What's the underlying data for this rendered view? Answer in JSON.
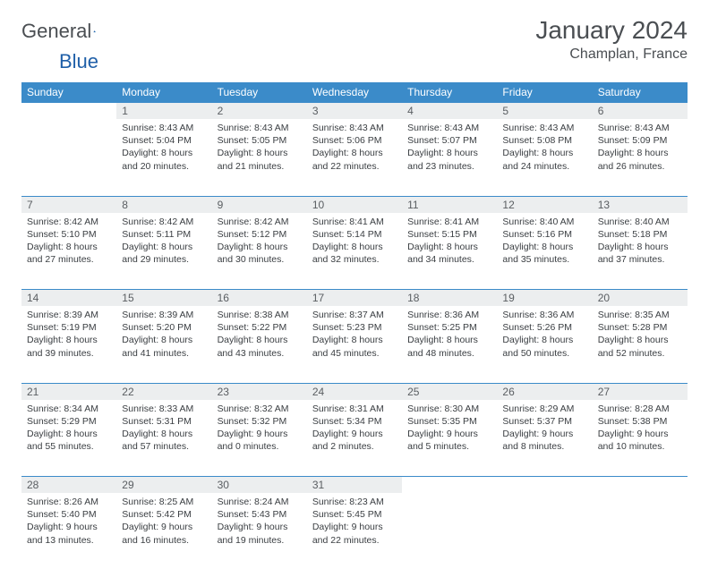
{
  "brand": {
    "part1": "General",
    "part2": "Blue"
  },
  "title": "January 2024",
  "location": "Champlan, France",
  "colors": {
    "header_bg": "#3b8bc9",
    "header_text": "#ffffff",
    "daynum_bg": "#eceeef",
    "row_border": "#3b8bc9",
    "body_text": "#3a3e42",
    "title_text": "#4a4e52"
  },
  "weekdays": [
    "Sunday",
    "Monday",
    "Tuesday",
    "Wednesday",
    "Thursday",
    "Friday",
    "Saturday"
  ],
  "weeks": [
    {
      "days": [
        {
          "num": "",
          "lines": [
            "",
            "",
            "",
            ""
          ]
        },
        {
          "num": "1",
          "lines": [
            "Sunrise: 8:43 AM",
            "Sunset: 5:04 PM",
            "Daylight: 8 hours",
            "and 20 minutes."
          ]
        },
        {
          "num": "2",
          "lines": [
            "Sunrise: 8:43 AM",
            "Sunset: 5:05 PM",
            "Daylight: 8 hours",
            "and 21 minutes."
          ]
        },
        {
          "num": "3",
          "lines": [
            "Sunrise: 8:43 AM",
            "Sunset: 5:06 PM",
            "Daylight: 8 hours",
            "and 22 minutes."
          ]
        },
        {
          "num": "4",
          "lines": [
            "Sunrise: 8:43 AM",
            "Sunset: 5:07 PM",
            "Daylight: 8 hours",
            "and 23 minutes."
          ]
        },
        {
          "num": "5",
          "lines": [
            "Sunrise: 8:43 AM",
            "Sunset: 5:08 PM",
            "Daylight: 8 hours",
            "and 24 minutes."
          ]
        },
        {
          "num": "6",
          "lines": [
            "Sunrise: 8:43 AM",
            "Sunset: 5:09 PM",
            "Daylight: 8 hours",
            "and 26 minutes."
          ]
        }
      ]
    },
    {
      "days": [
        {
          "num": "7",
          "lines": [
            "Sunrise: 8:42 AM",
            "Sunset: 5:10 PM",
            "Daylight: 8 hours",
            "and 27 minutes."
          ]
        },
        {
          "num": "8",
          "lines": [
            "Sunrise: 8:42 AM",
            "Sunset: 5:11 PM",
            "Daylight: 8 hours",
            "and 29 minutes."
          ]
        },
        {
          "num": "9",
          "lines": [
            "Sunrise: 8:42 AM",
            "Sunset: 5:12 PM",
            "Daylight: 8 hours",
            "and 30 minutes."
          ]
        },
        {
          "num": "10",
          "lines": [
            "Sunrise: 8:41 AM",
            "Sunset: 5:14 PM",
            "Daylight: 8 hours",
            "and 32 minutes."
          ]
        },
        {
          "num": "11",
          "lines": [
            "Sunrise: 8:41 AM",
            "Sunset: 5:15 PM",
            "Daylight: 8 hours",
            "and 34 minutes."
          ]
        },
        {
          "num": "12",
          "lines": [
            "Sunrise: 8:40 AM",
            "Sunset: 5:16 PM",
            "Daylight: 8 hours",
            "and 35 minutes."
          ]
        },
        {
          "num": "13",
          "lines": [
            "Sunrise: 8:40 AM",
            "Sunset: 5:18 PM",
            "Daylight: 8 hours",
            "and 37 minutes."
          ]
        }
      ]
    },
    {
      "days": [
        {
          "num": "14",
          "lines": [
            "Sunrise: 8:39 AM",
            "Sunset: 5:19 PM",
            "Daylight: 8 hours",
            "and 39 minutes."
          ]
        },
        {
          "num": "15",
          "lines": [
            "Sunrise: 8:39 AM",
            "Sunset: 5:20 PM",
            "Daylight: 8 hours",
            "and 41 minutes."
          ]
        },
        {
          "num": "16",
          "lines": [
            "Sunrise: 8:38 AM",
            "Sunset: 5:22 PM",
            "Daylight: 8 hours",
            "and 43 minutes."
          ]
        },
        {
          "num": "17",
          "lines": [
            "Sunrise: 8:37 AM",
            "Sunset: 5:23 PM",
            "Daylight: 8 hours",
            "and 45 minutes."
          ]
        },
        {
          "num": "18",
          "lines": [
            "Sunrise: 8:36 AM",
            "Sunset: 5:25 PM",
            "Daylight: 8 hours",
            "and 48 minutes."
          ]
        },
        {
          "num": "19",
          "lines": [
            "Sunrise: 8:36 AM",
            "Sunset: 5:26 PM",
            "Daylight: 8 hours",
            "and 50 minutes."
          ]
        },
        {
          "num": "20",
          "lines": [
            "Sunrise: 8:35 AM",
            "Sunset: 5:28 PM",
            "Daylight: 8 hours",
            "and 52 minutes."
          ]
        }
      ]
    },
    {
      "days": [
        {
          "num": "21",
          "lines": [
            "Sunrise: 8:34 AM",
            "Sunset: 5:29 PM",
            "Daylight: 8 hours",
            "and 55 minutes."
          ]
        },
        {
          "num": "22",
          "lines": [
            "Sunrise: 8:33 AM",
            "Sunset: 5:31 PM",
            "Daylight: 8 hours",
            "and 57 minutes."
          ]
        },
        {
          "num": "23",
          "lines": [
            "Sunrise: 8:32 AM",
            "Sunset: 5:32 PM",
            "Daylight: 9 hours",
            "and 0 minutes."
          ]
        },
        {
          "num": "24",
          "lines": [
            "Sunrise: 8:31 AM",
            "Sunset: 5:34 PM",
            "Daylight: 9 hours",
            "and 2 minutes."
          ]
        },
        {
          "num": "25",
          "lines": [
            "Sunrise: 8:30 AM",
            "Sunset: 5:35 PM",
            "Daylight: 9 hours",
            "and 5 minutes."
          ]
        },
        {
          "num": "26",
          "lines": [
            "Sunrise: 8:29 AM",
            "Sunset: 5:37 PM",
            "Daylight: 9 hours",
            "and 8 minutes."
          ]
        },
        {
          "num": "27",
          "lines": [
            "Sunrise: 8:28 AM",
            "Sunset: 5:38 PM",
            "Daylight: 9 hours",
            "and 10 minutes."
          ]
        }
      ]
    },
    {
      "days": [
        {
          "num": "28",
          "lines": [
            "Sunrise: 8:26 AM",
            "Sunset: 5:40 PM",
            "Daylight: 9 hours",
            "and 13 minutes."
          ]
        },
        {
          "num": "29",
          "lines": [
            "Sunrise: 8:25 AM",
            "Sunset: 5:42 PM",
            "Daylight: 9 hours",
            "and 16 minutes."
          ]
        },
        {
          "num": "30",
          "lines": [
            "Sunrise: 8:24 AM",
            "Sunset: 5:43 PM",
            "Daylight: 9 hours",
            "and 19 minutes."
          ]
        },
        {
          "num": "31",
          "lines": [
            "Sunrise: 8:23 AM",
            "Sunset: 5:45 PM",
            "Daylight: 9 hours",
            "and 22 minutes."
          ]
        },
        {
          "num": "",
          "lines": [
            "",
            "",
            "",
            ""
          ]
        },
        {
          "num": "",
          "lines": [
            "",
            "",
            "",
            ""
          ]
        },
        {
          "num": "",
          "lines": [
            "",
            "",
            "",
            ""
          ]
        }
      ]
    }
  ]
}
